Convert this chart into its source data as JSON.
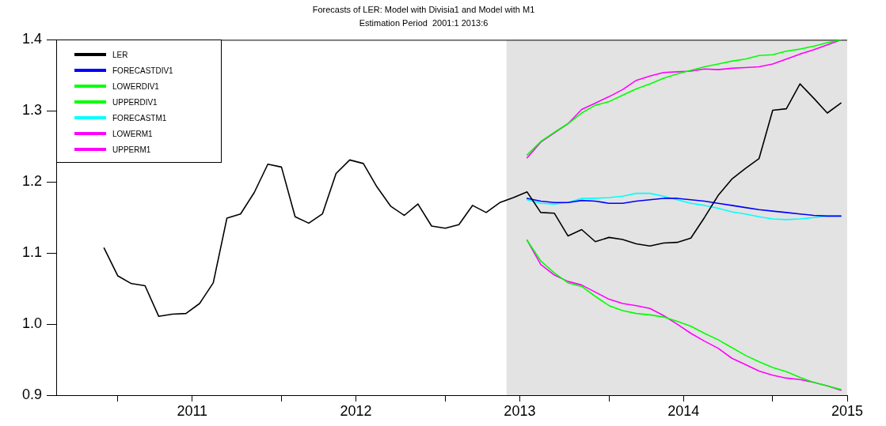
{
  "chart_data": {
    "type": "line",
    "title": "Forecasts of LER: Model with Divisia1 and Model with M1",
    "subtitle": "Estimation Period  2001:1 2013:6",
    "series": [
      {
        "name": "LER",
        "color": "#000000",
        "x": [
          "2010-12",
          "2011-01",
          "2011-02",
          "2011-03",
          "2011-04",
          "2011-05",
          "2011-06",
          "2011-07",
          "2011-08",
          "2011-09",
          "2011-10",
          "2011-11",
          "2011-12",
          "2012-01",
          "2012-02",
          "2012-03",
          "2012-04",
          "2012-05",
          "2012-06",
          "2012-07",
          "2012-08",
          "2012-09",
          "2012-10",
          "2012-11",
          "2012-12",
          "2013-01",
          "2013-02",
          "2013-03",
          "2013-04",
          "2013-05",
          "2013-06",
          "2013-07",
          "2013-08",
          "2013-09",
          "2013-10",
          "2013-11",
          "2013-12",
          "2014-01",
          "2014-02",
          "2014-03",
          "2014-04",
          "2014-05",
          "2014-06",
          "2014-07",
          "2014-08",
          "2014-09",
          "2014-10",
          "2014-11",
          "2014-12",
          "2015-01",
          "2015-02",
          "2015-03",
          "2015-04",
          "2015-05",
          "2015-06"
        ],
        "values": [
          1.107,
          1.068,
          1.057,
          1.054,
          1.011,
          1.014,
          1.015,
          1.029,
          1.058,
          1.149,
          1.155,
          1.185,
          1.225,
          1.221,
          1.151,
          1.142,
          1.155,
          1.212,
          1.231,
          1.226,
          1.193,
          1.166,
          1.153,
          1.169,
          1.138,
          1.135,
          1.14,
          1.167,
          1.157,
          1.171,
          1.178,
          1.186,
          1.157,
          1.156,
          1.124,
          1.133,
          1.116,
          1.122,
          1.119,
          1.113,
          1.11,
          1.114,
          1.115,
          1.121,
          1.15,
          1.181,
          1.204,
          1.219,
          1.233,
          1.301,
          1.303,
          1.338,
          1.318,
          1.297,
          1.311
        ]
      },
      {
        "name": "FORECASTDIV1",
        "color": "#0000ff",
        "x": [
          "2013-07",
          "2013-08",
          "2013-09",
          "2013-10",
          "2013-11",
          "2013-12",
          "2014-01",
          "2014-02",
          "2014-03",
          "2014-04",
          "2014-05",
          "2014-06",
          "2014-07",
          "2014-08",
          "2014-09",
          "2014-10",
          "2014-11",
          "2014-12",
          "2015-01",
          "2015-02",
          "2015-03",
          "2015-04",
          "2015-05",
          "2015-06"
        ],
        "values": [
          1.177,
          1.173,
          1.171,
          1.171,
          1.174,
          1.173,
          1.17,
          1.17,
          1.173,
          1.175,
          1.177,
          1.177,
          1.175,
          1.173,
          1.17,
          1.167,
          1.164,
          1.161,
          1.159,
          1.157,
          1.155,
          1.153,
          1.152,
          1.152
        ]
      },
      {
        "name": "LOWERDIV1",
        "color": "#00ff00",
        "x": [
          "2013-07",
          "2013-08",
          "2013-09",
          "2013-10",
          "2013-11",
          "2013-12",
          "2014-01",
          "2014-02",
          "2014-03",
          "2014-04",
          "2014-05",
          "2014-06",
          "2014-07",
          "2014-08",
          "2014-09",
          "2014-10",
          "2014-11",
          "2014-12",
          "2015-01",
          "2015-02",
          "2015-03",
          "2015-04",
          "2015-05",
          "2015-06"
        ],
        "values": [
          1.118,
          1.089,
          1.072,
          1.058,
          1.053,
          1.039,
          1.026,
          1.019,
          1.015,
          1.013,
          1.01,
          1.004,
          0.997,
          0.987,
          0.978,
          0.967,
          0.956,
          0.947,
          0.939,
          0.933,
          0.925,
          0.918,
          0.913,
          0.908
        ]
      },
      {
        "name": "UPPERDIV1",
        "color": "#00ff00",
        "x": [
          "2013-07",
          "2013-08",
          "2013-09",
          "2013-10",
          "2013-11",
          "2013-12",
          "2014-01",
          "2014-02",
          "2014-03",
          "2014-04",
          "2014-05",
          "2014-06",
          "2014-07",
          "2014-08",
          "2014-09",
          "2014-10",
          "2014-11",
          "2014-12",
          "2015-01",
          "2015-02",
          "2015-03",
          "2015-04",
          "2015-05",
          "2015-06"
        ],
        "values": [
          1.238,
          1.257,
          1.27,
          1.282,
          1.297,
          1.308,
          1.313,
          1.322,
          1.331,
          1.338,
          1.346,
          1.352,
          1.357,
          1.362,
          1.366,
          1.37,
          1.373,
          1.378,
          1.379,
          1.384,
          1.387,
          1.391,
          1.396,
          1.4
        ]
      },
      {
        "name": "FORECASTM1",
        "color": "#00ffff",
        "x": [
          "2013-07",
          "2013-08",
          "2013-09",
          "2013-10",
          "2013-11",
          "2013-12",
          "2014-01",
          "2014-02",
          "2014-03",
          "2014-04",
          "2014-05",
          "2014-06",
          "2014-07",
          "2014-08",
          "2014-09",
          "2014-10",
          "2014-11",
          "2014-12",
          "2015-01",
          "2015-02",
          "2015-03",
          "2015-04",
          "2015-05",
          "2015-06"
        ],
        "values": [
          1.175,
          1.17,
          1.169,
          1.171,
          1.177,
          1.177,
          1.178,
          1.18,
          1.184,
          1.184,
          1.18,
          1.175,
          1.17,
          1.167,
          1.163,
          1.158,
          1.155,
          1.151,
          1.148,
          1.147,
          1.148,
          1.15,
          1.152,
          1.152
        ]
      },
      {
        "name": "LOWERM1",
        "color": "#ff00ff",
        "x": [
          "2013-07",
          "2013-08",
          "2013-09",
          "2013-10",
          "2013-11",
          "2013-12",
          "2014-01",
          "2014-02",
          "2014-03",
          "2014-04",
          "2014-05",
          "2014-06",
          "2014-07",
          "2014-08",
          "2014-09",
          "2014-10",
          "2014-11",
          "2014-12",
          "2015-01",
          "2015-02",
          "2015-03",
          "2015-04",
          "2015-05",
          "2015-06"
        ],
        "values": [
          1.118,
          1.084,
          1.069,
          1.06,
          1.055,
          1.045,
          1.035,
          1.029,
          1.026,
          1.022,
          1.012,
          1.0,
          0.987,
          0.976,
          0.966,
          0.952,
          0.943,
          0.934,
          0.928,
          0.924,
          0.922,
          0.918,
          0.913,
          0.907
        ]
      },
      {
        "name": "UPPERM1",
        "color": "#ff00ff",
        "x": [
          "2013-07",
          "2013-08",
          "2013-09",
          "2013-10",
          "2013-11",
          "2013-12",
          "2014-01",
          "2014-02",
          "2014-03",
          "2014-04",
          "2014-05",
          "2014-06",
          "2014-07",
          "2014-08",
          "2014-09",
          "2014-10",
          "2014-11",
          "2014-12",
          "2015-01",
          "2015-02",
          "2015-03",
          "2015-04",
          "2015-05",
          "2015-06"
        ],
        "values": [
          1.234,
          1.256,
          1.269,
          1.282,
          1.302,
          1.311,
          1.32,
          1.33,
          1.343,
          1.349,
          1.354,
          1.355,
          1.356,
          1.359,
          1.358,
          1.36,
          1.361,
          1.362,
          1.366,
          1.373,
          1.38,
          1.386,
          1.393,
          1.4
        ]
      }
    ],
    "xlim": [
      "2010-08-16",
      "2015-06-15"
    ],
    "xticks": [
      {
        "value": "2011-01",
        "label": null
      },
      {
        "value": "2011-06-15",
        "label": "2011"
      },
      {
        "value": "2012-01",
        "label": null
      },
      {
        "value": "2012-06-15",
        "label": "2012"
      },
      {
        "value": "2013-01",
        "label": null
      },
      {
        "value": "2013-06-15",
        "label": "2013"
      },
      {
        "value": "2014-01",
        "label": null
      },
      {
        "value": "2014-06-15",
        "label": "2014"
      },
      {
        "value": "2015-01",
        "label": null
      },
      {
        "value": "2015-06-15",
        "label": "2015"
      }
    ],
    "ylim": [
      0.9,
      1.4
    ],
    "yticks": [
      0.9,
      {
        "value": 1,
        "label": "1.0"
      },
      1.1,
      1.2,
      1.3,
      1.4
    ],
    "bands": [
      {
        "axis": "x",
        "from": "2013-05-16",
        "to": "2015-06-15",
        "color": "#e3e3e3"
      }
    ],
    "grid": false,
    "legend": "top left",
    "marker": "none",
    "line_style": "solid"
  }
}
